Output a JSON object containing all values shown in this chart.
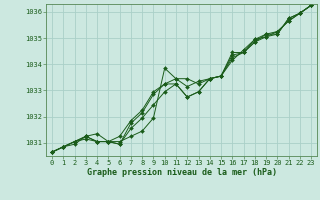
{
  "title": "Graphe pression niveau de la mer (hPa)",
  "background_color": "#cce8e0",
  "plot_bg_color": "#cce8e0",
  "line_color": "#1a5c1a",
  "grid_color": "#aad0c8",
  "axis_color": "#558855",
  "xlim": [
    -0.5,
    23.5
  ],
  "ylim": [
    1030.5,
    1036.3
  ],
  "yticks": [
    1031,
    1032,
    1033,
    1034,
    1035,
    1036
  ],
  "xticks": [
    0,
    1,
    2,
    3,
    4,
    5,
    6,
    7,
    8,
    9,
    10,
    11,
    12,
    13,
    14,
    15,
    16,
    17,
    18,
    19,
    20,
    21,
    22,
    23
  ],
  "tick_fontsize": 5.0,
  "label_fontsize": 6.0,
  "series": [
    [
      1030.65,
      1030.85,
      1030.95,
      1031.25,
      1031.35,
      1031.05,
      1031.05,
      1031.25,
      1031.45,
      1031.95,
      1033.85,
      1033.45,
      1033.45,
      1033.25,
      1033.45,
      1033.55,
      1034.15,
      1034.55,
      1034.95,
      1035.05,
      1035.15,
      1035.75,
      1035.95,
      1036.25
    ],
    [
      1030.65,
      1030.85,
      1031.05,
      1031.25,
      1031.05,
      1031.05,
      1030.95,
      1031.75,
      1032.15,
      1032.85,
      1033.25,
      1033.25,
      1032.75,
      1032.95,
      1033.45,
      1033.55,
      1034.35,
      1034.45,
      1034.85,
      1035.05,
      1035.25,
      1035.65,
      1035.95,
      1036.25
    ],
    [
      1030.65,
      1030.85,
      1031.05,
      1031.25,
      1031.05,
      1031.05,
      1031.25,
      1031.85,
      1032.25,
      1032.95,
      1033.25,
      1033.45,
      1033.15,
      1033.35,
      1033.45,
      1033.55,
      1034.45,
      1034.45,
      1034.85,
      1035.15,
      1035.25,
      1035.65,
      1035.95,
      1036.25
    ],
    [
      1030.65,
      1030.85,
      1031.05,
      1031.15,
      1031.05,
      1031.05,
      1030.95,
      1031.55,
      1031.95,
      1032.45,
      1032.95,
      1033.25,
      1032.75,
      1032.95,
      1033.45,
      1033.55,
      1034.25,
      1034.45,
      1034.95,
      1035.15,
      1035.15,
      1035.75,
      1035.95,
      1036.25
    ]
  ]
}
